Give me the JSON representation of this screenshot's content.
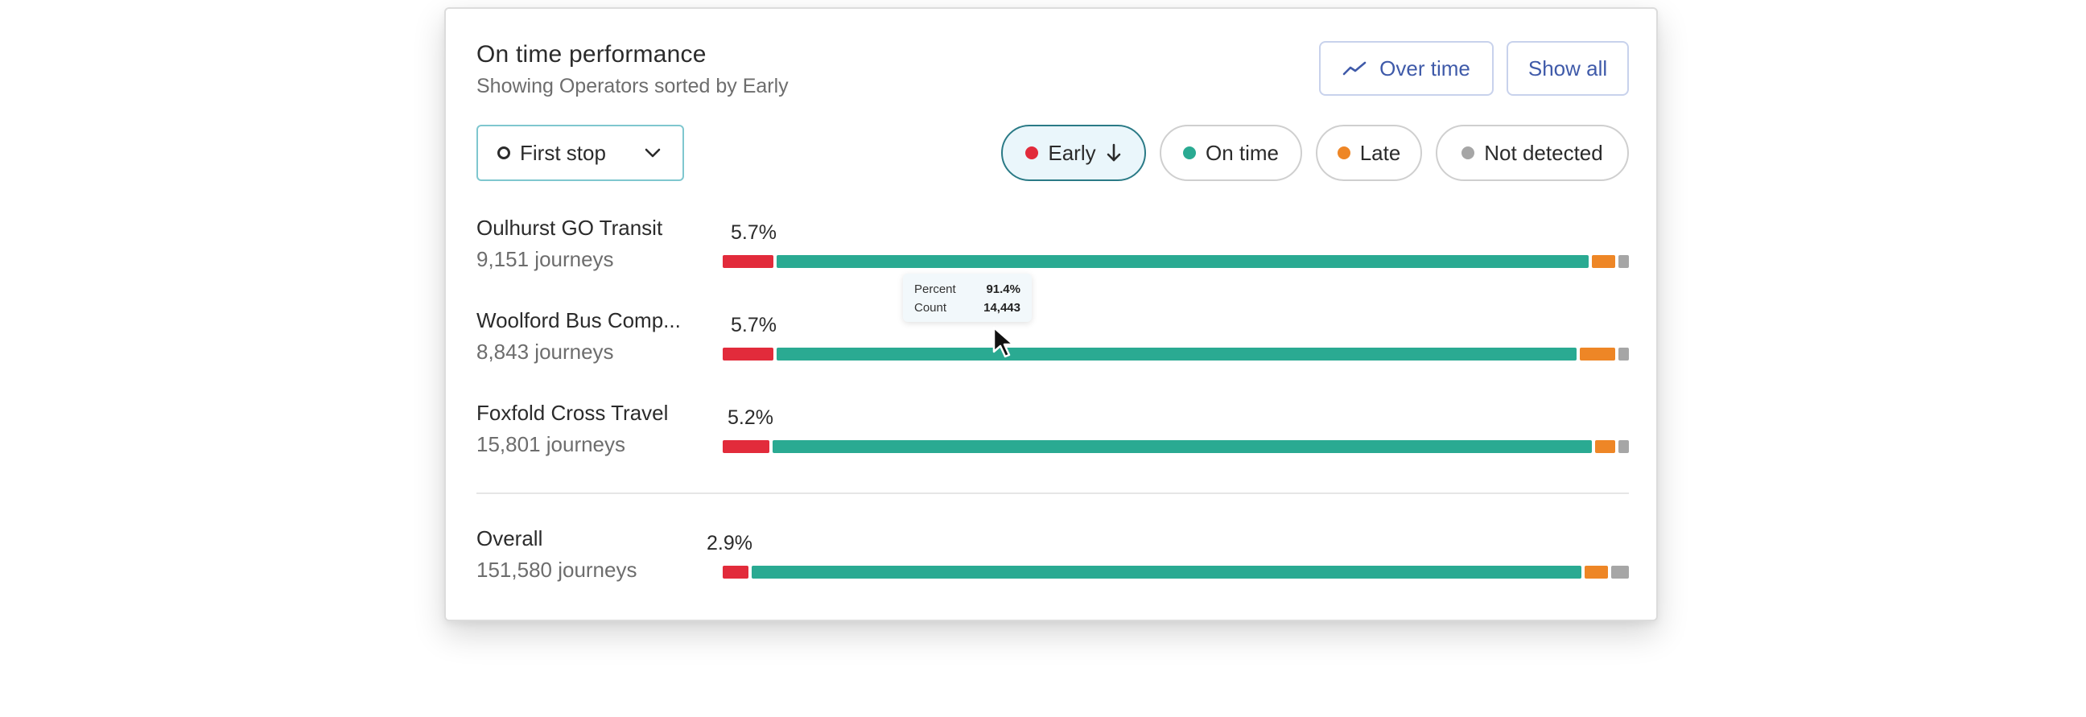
{
  "card": {
    "title": "On time performance",
    "subtitle": "Showing Operators sorted by Early"
  },
  "buttons": {
    "over_time": "Over time",
    "show_all": "Show all"
  },
  "stop_select": {
    "value": "First stop"
  },
  "legend": [
    {
      "label": "Early",
      "color": "#e22b3b",
      "active": true,
      "sort": "descending"
    },
    {
      "label": "On time",
      "color": "#2aaa92",
      "active": false
    },
    {
      "label": "Late",
      "color": "#ee8626",
      "active": false
    },
    {
      "label": "Not detected",
      "color": "#a6a6a6",
      "active": false
    }
  ],
  "chart_data": {
    "type": "bar",
    "stacked": true,
    "series_names": [
      "Early",
      "On time",
      "Late",
      "Not detected"
    ],
    "rows": [
      {
        "name": "Oulhurst GO Transit",
        "journeys": "9,151 journeys",
        "early_label": "5.7%",
        "values": [
          5.7,
          90.5,
          2.6,
          1.2
        ]
      },
      {
        "name": "Woolford Bus Comp...",
        "journeys": "8,843 journeys",
        "early_label": "5.7%",
        "values": [
          5.7,
          89.2,
          3.9,
          1.2
        ]
      },
      {
        "name": "Foxfold Cross Travel",
        "journeys": "15,801 journeys",
        "early_label": "5.2%",
        "values": [
          5.2,
          91.4,
          2.2,
          1.2
        ]
      }
    ],
    "overall": {
      "name": "Overall",
      "journeys": "151,580 journeys",
      "early_label": "2.9%",
      "values": [
        2.9,
        92.5,
        2.6,
        2.0
      ]
    }
  },
  "tooltip": {
    "percent_label": "Percent",
    "percent_value": "91.4%",
    "count_label": "Count",
    "count_value": "14,443"
  }
}
